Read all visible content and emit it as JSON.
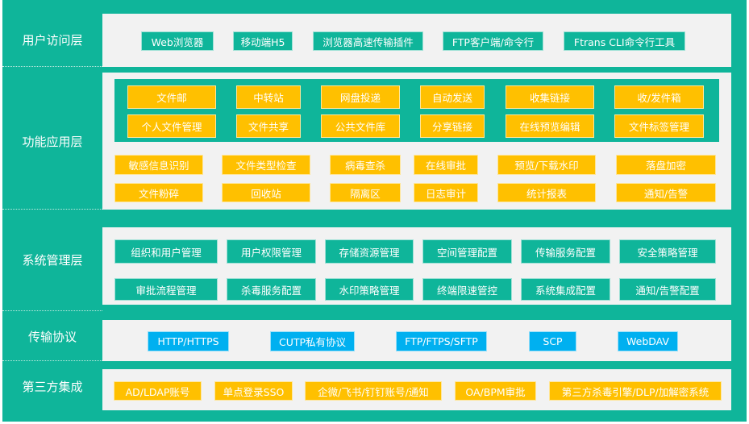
{
  "colors": {
    "teal": "#0fb59a",
    "yellow": "#ffc000",
    "blue": "#00b0f0",
    "panel": "#f2f2f2"
  },
  "layers": {
    "user_access": {
      "label": "用户访问层",
      "items": [
        "Web浏览器",
        "移动端H5",
        "浏览器高速传输插件",
        "FTP客户端/命令行",
        "Ftrans CLI命令行工具"
      ]
    },
    "function": {
      "label": "功能应用层",
      "core_row1": [
        "文件邮",
        "中转站",
        "网盘投递",
        "自动发送",
        "收集链接",
        "收/发件箱"
      ],
      "core_row2": [
        "个人文件管理",
        "文件共享",
        "公共文件库",
        "分享链接",
        "在线预览编辑",
        "文件标签管理"
      ],
      "row3": [
        "敏感信息识别",
        "文件类型检查",
        "病毒查杀",
        "在线审批",
        "预览/下载水印",
        "落盘加密"
      ],
      "row4": [
        "文件粉碎",
        "回收站",
        "隔离区",
        "日志审计",
        "统计报表",
        "通知/告警"
      ]
    },
    "system": {
      "label": "系统管理层",
      "row1": [
        "组织和用户管理",
        "用户权限管理",
        "存储资源管理",
        "空间管理配置",
        "传输服务配置",
        "安全策略管理"
      ],
      "row2": [
        "审批流程管理",
        "杀毒服务配置",
        "水印策略管理",
        "终端限速管控",
        "系统集成配置",
        "通知/告警配置"
      ]
    },
    "protocol": {
      "label": "传输协议",
      "items": [
        "HTTP/HTTPS",
        "CUTP私有协议",
        "FTP/FTPS/SFTP",
        "SCP",
        "WebDAV"
      ]
    },
    "third_party": {
      "label": "第三方集成",
      "items": [
        "AD/LDAP账号",
        "单点登录SSO",
        "企微/飞书/钉钉账号/通知",
        "OA/BPM审批",
        "第三方杀毒引擎/DLP/加解密系统"
      ]
    }
  }
}
